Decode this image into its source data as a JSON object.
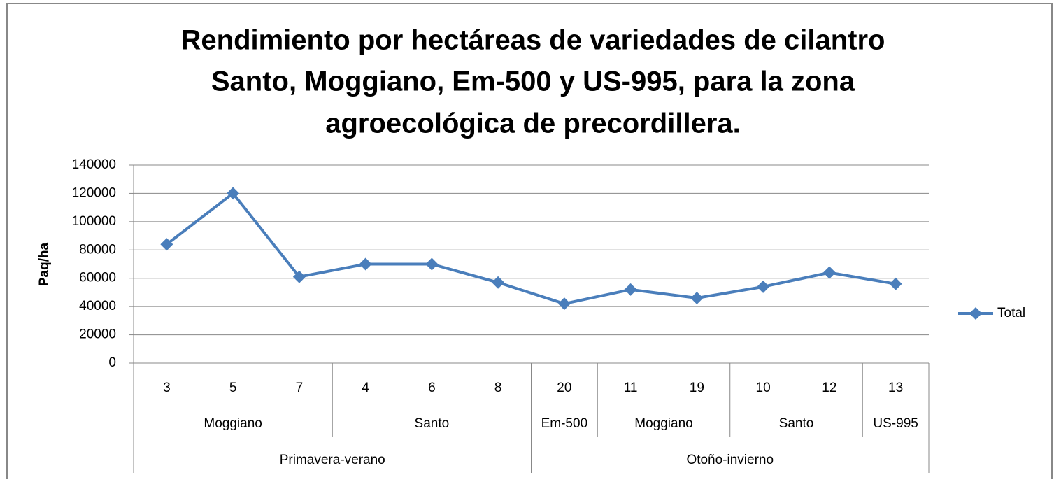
{
  "chart_data": {
    "type": "line",
    "title": [
      "Rendimiento por hectáreas  de variedades de cilantro",
      "Santo, Moggiano, Em-500 y US-995, para la zona",
      "agroecológica de precordillera."
    ],
    "y_label": "Paq/ha",
    "categories": [
      "3",
      "5",
      "7",
      "4",
      "6",
      "8",
      "20",
      "11",
      "19",
      "10",
      "12",
      "13"
    ],
    "varieties": [
      "Moggiano",
      null,
      null,
      "Santo",
      null,
      null,
      "Em-500",
      "Moggiano",
      null,
      "Santo",
      null,
      "US-995"
    ],
    "seasons": [
      "Primavera-verano",
      null,
      null,
      null,
      null,
      null,
      "Otoño-invierno",
      null,
      null,
      null,
      null,
      null
    ],
    "series": [
      {
        "name": "Total",
        "color": "#4a7ebb",
        "values": [
          84000,
          120000,
          61000,
          70000,
          70000,
          57000,
          42000,
          52000,
          46000,
          54000,
          64000,
          56000
        ]
      }
    ],
    "ylim": [
      0,
      140000
    ],
    "yticks": [
      0,
      20000,
      40000,
      60000,
      80000,
      100000,
      120000,
      140000
    ],
    "grid": true,
    "legend": "right"
  }
}
